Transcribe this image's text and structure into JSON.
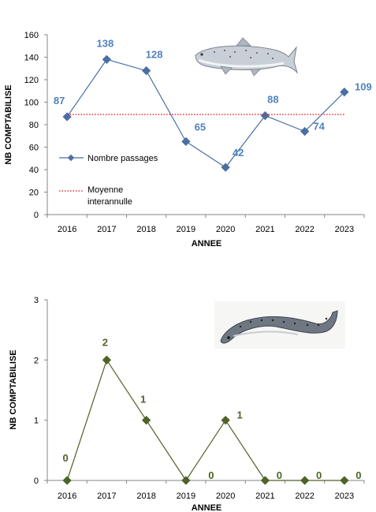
{
  "chart_data": [
    {
      "type": "line",
      "categories": [
        "2016",
        "2017",
        "2018",
        "2019",
        "2020",
        "2021",
        "2022",
        "2023"
      ],
      "series": [
        {
          "name": "Nombre passages",
          "values": [
            87,
            138,
            128,
            65,
            42,
            88,
            74,
            109
          ],
          "color": "#4a6fa5",
          "label_color": "#4f81bd"
        },
        {
          "name": "Moyenne interannulle",
          "values": [
            89,
            89,
            89,
            89,
            89,
            89,
            89,
            89
          ],
          "color": "#e03030",
          "style": "dotted"
        }
      ],
      "xlabel": "ANNEE",
      "ylabel": "NB COMPTABILISE",
      "ylim": [
        0,
        160
      ],
      "yticks": [
        "0",
        "20",
        "40",
        "60",
        "80",
        "100",
        "120",
        "140",
        "160"
      ],
      "data_labels": [
        "87",
        "138",
        "128",
        "65",
        "42",
        "88",
        "74",
        "109"
      ],
      "legend": {
        "placement": "left-middle",
        "entries": [
          "Nombre passages",
          "Moyenne",
          "interannulle"
        ]
      },
      "grid": false,
      "illustration": "salmon-fish"
    },
    {
      "type": "line",
      "categories": [
        "2016",
        "2017",
        "2018",
        "2019",
        "2020",
        "2021",
        "2022",
        "2023"
      ],
      "series": [
        {
          "values": [
            0,
            2,
            1,
            0,
            1,
            0,
            0,
            0
          ],
          "color": "#4f6228",
          "label_color": "#4f6228"
        }
      ],
      "xlabel": "ANNEE",
      "ylabel": "NB COMPTABILISE",
      "ylim": [
        0,
        3
      ],
      "yticks": [
        "0",
        "1",
        "2",
        "3"
      ],
      "data_labels": [
        "0",
        "2",
        "1",
        "0",
        "1",
        "0",
        "0",
        "0"
      ],
      "grid": false,
      "illustration": "lamprey-fish"
    }
  ]
}
